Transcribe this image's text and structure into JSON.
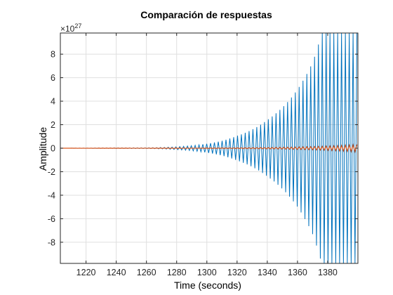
{
  "chart_data": {
    "type": "line",
    "title": "Comparación de respuestas",
    "xlabel": "Time (seconds)",
    "ylabel": "Amplitude",
    "xlim": [
      1203,
      1400
    ],
    "ylim": [
      -9.8,
      9.8
    ],
    "y_exponent_label": {
      "base": "×10",
      "exponent": "27"
    },
    "xticks": [
      1220,
      1240,
      1260,
      1280,
      1300,
      1320,
      1340,
      1360,
      1380
    ],
    "yticks": [
      -8,
      -6,
      -4,
      -2,
      0,
      2,
      4,
      6,
      8
    ],
    "grid": true,
    "series": [
      {
        "color": "#0072BD",
        "description_values": {
          "t_start": 1203,
          "t_end": 1400,
          "period": 2.55,
          "envelope_points": [
            [
              1203,
              0.0
            ],
            [
              1260,
              0.03
            ],
            [
              1280,
              0.12
            ],
            [
              1300,
              0.38
            ],
            [
              1320,
              1.05
            ],
            [
              1340,
              2.4
            ],
            [
              1360,
              5.0
            ],
            [
              1370,
              7.3
            ],
            [
              1376,
              9.8
            ],
            [
              1400,
              9.8
            ]
          ]
        }
      },
      {
        "color": "#D95319",
        "description_values": {
          "t_start": 1203,
          "t_end": 1400,
          "period": 2.55,
          "envelope_points": [
            [
              1203,
              0.0
            ],
            [
              1300,
              0.02
            ],
            [
              1340,
              0.06
            ],
            [
              1370,
              0.14
            ],
            [
              1400,
              0.32
            ]
          ]
        }
      }
    ]
  }
}
